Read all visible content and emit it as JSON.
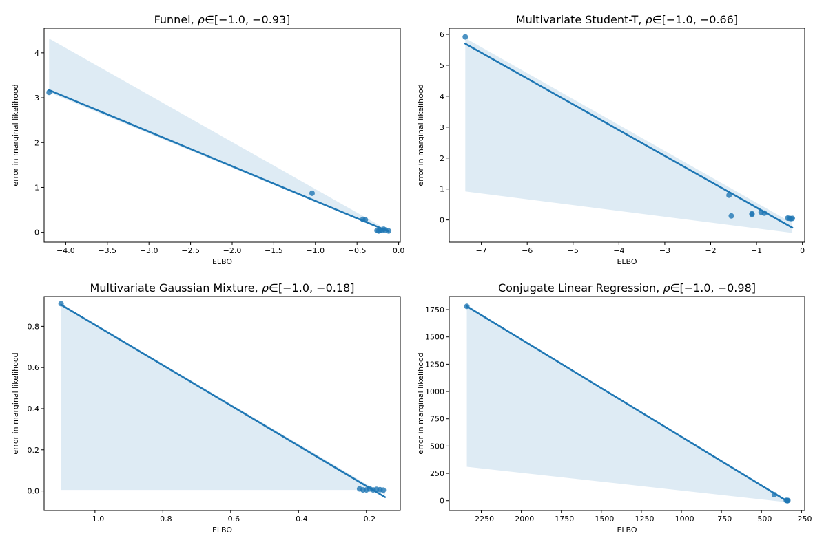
{
  "colors": {
    "series": "#1f77b4",
    "band_opacity": 0.15
  },
  "chart_data": [
    {
      "type": "scatter",
      "title_prefix": "Funnel, ",
      "title_rho": "ρ",
      "title_suffix": "∈[−1.0, −0.93]",
      "xlabel": "ELBO",
      "ylabel": "error in marginal likelihood",
      "xlim": [
        -4.26,
        0.02
      ],
      "ylim": [
        -0.22,
        4.55
      ],
      "xticks": [
        -4.0,
        -3.5,
        -3.0,
        -2.5,
        -2.0,
        -1.5,
        -1.0,
        -0.5,
        0.0
      ],
      "xtick_labels": [
        "−4.0",
        "−3.5",
        "−3.0",
        "−2.5",
        "−2.0",
        "−1.5",
        "−1.0",
        "−0.5",
        "0.0"
      ],
      "yticks": [
        0,
        1,
        2,
        3,
        4
      ],
      "ytick_labels": [
        "0",
        "1",
        "2",
        "3",
        "4"
      ],
      "points": [
        [
          -4.2,
          3.12
        ],
        [
          -1.04,
          0.87
        ],
        [
          -0.43,
          0.29
        ],
        [
          -0.4,
          0.28
        ],
        [
          -0.26,
          0.04
        ],
        [
          -0.24,
          0.03
        ],
        [
          -0.22,
          0.05
        ],
        [
          -0.2,
          0.04
        ],
        [
          -0.18,
          0.07
        ],
        [
          -0.16,
          0.05
        ],
        [
          -0.12,
          0.03
        ]
      ],
      "fit_line": [
        [
          -4.2,
          3.17
        ],
        [
          -0.12,
          0.02
        ]
      ],
      "ci_upper": [
        [
          -4.2,
          4.32
        ],
        [
          -0.12,
          0.04
        ]
      ],
      "ci_lower": [
        [
          -4.2,
          3.12
        ],
        [
          -0.12,
          0.0
        ]
      ]
    },
    {
      "type": "scatter",
      "title_prefix": "Multivariate Student-T, ",
      "title_rho": "ρ",
      "title_suffix": "∈[−1.0, −0.66]",
      "xlabel": "ELBO",
      "ylabel": "error in marginal likelihood",
      "xlim": [
        -7.7,
        0.05
      ],
      "ylim": [
        -0.72,
        6.2
      ],
      "xticks": [
        -7,
        -6,
        -5,
        -4,
        -3,
        -2,
        -1,
        0
      ],
      "xtick_labels": [
        "−7",
        "−6",
        "−5",
        "−4",
        "−3",
        "−2",
        "−1",
        "0"
      ],
      "yticks": [
        0,
        1,
        2,
        3,
        4,
        5,
        6
      ],
      "ytick_labels": [
        "0",
        "1",
        "2",
        "3",
        "4",
        "5",
        "6"
      ],
      "points": [
        [
          -7.35,
          5.92
        ],
        [
          -1.6,
          0.8
        ],
        [
          -1.55,
          0.13
        ],
        [
          -1.1,
          0.2
        ],
        [
          -1.1,
          0.18
        ],
        [
          -0.9,
          0.25
        ],
        [
          -0.83,
          0.22
        ],
        [
          -0.32,
          0.06
        ],
        [
          -0.28,
          0.05
        ],
        [
          -0.25,
          0.04
        ],
        [
          -0.22,
          0.05
        ]
      ],
      "fit_line": [
        [
          -7.35,
          5.7
        ],
        [
          -0.22,
          -0.25
        ]
      ],
      "ci_upper": [
        [
          -7.35,
          5.88
        ],
        [
          -0.22,
          -0.1
        ]
      ],
      "ci_lower": [
        [
          -7.35,
          0.92
        ],
        [
          -0.22,
          -0.42
        ]
      ]
    },
    {
      "type": "scatter",
      "title_prefix": "Multivariate Gaussian Mixture, ",
      "title_rho": "ρ",
      "title_suffix": "∈[−1.0, −0.18]",
      "xlabel": "ELBO",
      "ylabel": "error in marginal likelihood",
      "xlim": [
        -1.15,
        -0.1
      ],
      "ylim": [
        -0.095,
        0.945
      ],
      "xticks": [
        -1.0,
        -0.8,
        -0.6,
        -0.4,
        -0.2
      ],
      "xtick_labels": [
        "−1.0",
        "−0.8",
        "−0.6",
        "−0.4",
        "−0.2"
      ],
      "yticks": [
        0.0,
        0.2,
        0.4,
        0.6,
        0.8
      ],
      "ytick_labels": [
        "0.0",
        "0.2",
        "0.4",
        "0.6",
        "0.8"
      ],
      "points": [
        [
          -1.1,
          0.91
        ],
        [
          -0.22,
          0.01
        ],
        [
          -0.21,
          0.005
        ],
        [
          -0.2,
          0.005
        ],
        [
          -0.19,
          0.01
        ],
        [
          -0.18,
          0.005
        ],
        [
          -0.17,
          0.008
        ],
        [
          -0.16,
          0.006
        ],
        [
          -0.15,
          0.004
        ]
      ],
      "fit_line": [
        [
          -1.1,
          0.905
        ],
        [
          -0.145,
          -0.03
        ]
      ],
      "ci_upper": [
        [
          -1.1,
          0.91
        ],
        [
          -0.145,
          -0.02
        ]
      ],
      "ci_lower": [
        [
          -1.1,
          0.005
        ],
        [
          -0.145,
          0.005
        ]
      ]
    },
    {
      "type": "scatter",
      "title_prefix": "Conjugate Linear Regression, ",
      "title_rho": "ρ",
      "title_suffix": "∈[−1.0, −0.98]",
      "xlabel": "ELBO",
      "ylabel": "error in marginal likelihood",
      "xlim": [
        -2450,
        -230
      ],
      "ylim": [
        -90,
        1870
      ],
      "xticks": [
        -2250,
        -2000,
        -1750,
        -1500,
        -1250,
        -1000,
        -750,
        -500,
        -250
      ],
      "xtick_labels": [
        "−2250",
        "−2000",
        "−1750",
        "−1500",
        "−1250",
        "−1000",
        "−750",
        "−500",
        "−250"
      ],
      "yticks": [
        0,
        250,
        500,
        750,
        1000,
        1250,
        1500,
        1750
      ],
      "ytick_labels": [
        "0",
        "250",
        "500",
        "750",
        "1000",
        "1250",
        "1500",
        "1750"
      ],
      "points": [
        [
          -2340,
          1780
        ],
        [
          -420,
          55
        ],
        [
          -345,
          3
        ],
        [
          -340,
          1
        ],
        [
          -338,
          0
        ],
        [
          -335,
          2
        ]
      ],
      "fit_line": [
        [
          -2340,
          1780
        ],
        [
          -335,
          -8
        ]
      ],
      "ci_upper": [
        [
          -2340,
          1785
        ],
        [
          -335,
          0
        ]
      ],
      "ci_lower": [
        [
          -2340,
          310
        ],
        [
          -335,
          -15
        ]
      ]
    }
  ]
}
